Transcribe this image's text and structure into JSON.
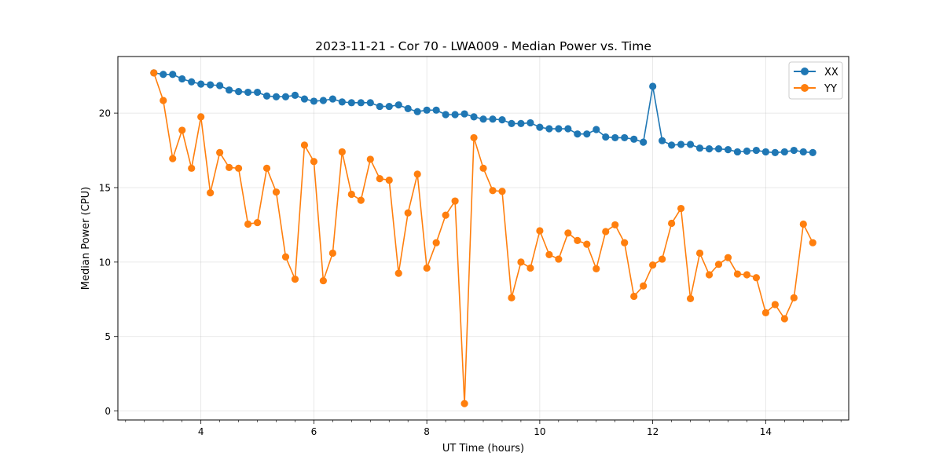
{
  "chart_data": {
    "type": "line",
    "title": "2023-11-21 - Cor 70 - LWA009 - Median Power vs. Time",
    "xlabel": "UT Time (hours)",
    "ylabel": "Median Power (CPU)",
    "xlim": [
      2.53,
      15.47
    ],
    "ylim": [
      -0.6,
      23.8
    ],
    "xticks": [
      4,
      6,
      8,
      10,
      12,
      14
    ],
    "xtick_labels": [
      "4",
      "6",
      "8",
      "10",
      "12",
      "14"
    ],
    "x_minor_step": 0.333333,
    "yticks": [
      0,
      5,
      10,
      15,
      20
    ],
    "ytick_labels": [
      "0",
      "5",
      "10",
      "15",
      "20"
    ],
    "grid": true,
    "legend_position": "top-right",
    "x_start": 3.167,
    "x_step": 0.16667,
    "series": [
      {
        "name": "XX",
        "color": "#1f77b4",
        "marker": "circle",
        "values": [
          22.7,
          22.6,
          22.6,
          22.3,
          22.1,
          21.95,
          21.9,
          21.85,
          21.55,
          21.45,
          21.4,
          21.4,
          21.15,
          21.1,
          21.1,
          21.2,
          20.95,
          20.8,
          20.85,
          20.95,
          20.75,
          20.7,
          20.7,
          20.7,
          20.45,
          20.45,
          20.55,
          20.3,
          20.1,
          20.2,
          20.2,
          19.9,
          19.9,
          19.95,
          19.75,
          19.6,
          19.6,
          19.55,
          19.3,
          19.3,
          19.35,
          19.05,
          18.95,
          18.95,
          18.95,
          18.6,
          18.6,
          18.9,
          18.4,
          18.35,
          18.35,
          18.25,
          18.05,
          21.8,
          18.15,
          17.85,
          17.9,
          17.9,
          17.65,
          17.6,
          17.6,
          17.55,
          17.4,
          17.45,
          17.5,
          17.4,
          17.35,
          17.4,
          17.5,
          17.4,
          17.35
        ]
      },
      {
        "name": "YY",
        "color": "#ff7f0e",
        "marker": "circle",
        "values": [
          22.7,
          20.85,
          16.95,
          18.85,
          16.3,
          19.75,
          14.65,
          17.35,
          16.35,
          16.3,
          12.55,
          12.65,
          16.3,
          14.7,
          10.35,
          8.85,
          17.85,
          16.75,
          8.75,
          10.6,
          17.4,
          14.55,
          14.15,
          16.9,
          15.6,
          15.5,
          9.25,
          13.3,
          15.9,
          9.6,
          11.3,
          13.15,
          14.1,
          0.5,
          18.35,
          16.3,
          14.8,
          14.75,
          7.6,
          10.0,
          9.6,
          12.1,
          10.5,
          10.2,
          11.95,
          11.45,
          11.2,
          9.55,
          12.05,
          12.5,
          11.3,
          7.7,
          8.4,
          9.8,
          10.2,
          12.6,
          13.6,
          7.55,
          10.6,
          9.15,
          9.85,
          10.3,
          9.2,
          9.15,
          8.95,
          6.6,
          7.15,
          6.2,
          7.6,
          12.55,
          11.3
        ]
      }
    ]
  }
}
